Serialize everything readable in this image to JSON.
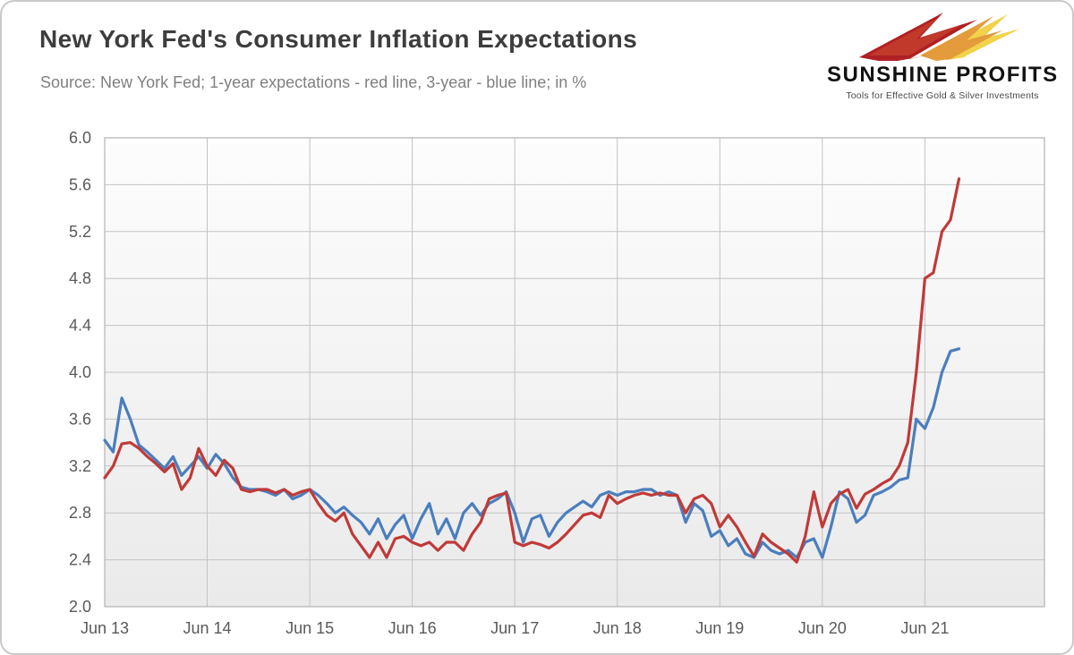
{
  "header": {
    "title": "New York Fed's Consumer Inflation Expectations",
    "subtitle": "Source: New York Fed; 1-year expectations - red line, 3-year - blue line; in %"
  },
  "logo": {
    "name": "SUNSHINE PROFITS",
    "tagline": "Tools for Effective Gold & Silver Investments",
    "colors": {
      "dark_red": "#a81922",
      "red": "#c0392b",
      "orange": "#e39b3b",
      "yellow": "#f2d24b"
    }
  },
  "chart_data": {
    "type": "line",
    "title": "New York Fed's Consumer Inflation Expectations",
    "xlabel": "",
    "ylabel": "",
    "ylim": [
      2.0,
      6.0
    ],
    "ytick_step": 0.4,
    "ytick_labels": [
      "2.0",
      "2.4",
      "2.8",
      "3.2",
      "3.6",
      "4.0",
      "4.4",
      "4.8",
      "5.2",
      "5.6",
      "6.0"
    ],
    "xtick_labels": [
      "Jun 13",
      "Jun 14",
      "Jun 15",
      "Jun 16",
      "Jun 17",
      "Jun 18",
      "Jun 19",
      "Jun 20",
      "Jun 21"
    ],
    "xtick_month_indices": [
      0,
      12,
      24,
      36,
      48,
      60,
      72,
      84,
      96
    ],
    "x_total_months": 110,
    "x_start": "Jun 2013",
    "x_end": "Oct 2021",
    "grid": true,
    "legend_position": "none (described in subtitle)",
    "plot_colors": {
      "grid": "#c3c3c3",
      "border": "#b3b3b3",
      "bg_top": "#fdfdfd",
      "bg_bottom": "#eaeaea"
    },
    "series": [
      {
        "name": "1-year expectations",
        "color": "#c03a38",
        "values": [
          3.1,
          3.2,
          3.39,
          3.4,
          3.35,
          3.28,
          3.22,
          3.15,
          3.22,
          3.0,
          3.1,
          3.35,
          3.2,
          3.12,
          3.25,
          3.18,
          3.0,
          2.98,
          3.0,
          3.0,
          2.97,
          3.0,
          2.95,
          2.98,
          3.0,
          2.88,
          2.78,
          2.73,
          2.8,
          2.62,
          2.52,
          2.42,
          2.55,
          2.42,
          2.58,
          2.6,
          2.55,
          2.52,
          2.55,
          2.48,
          2.55,
          2.55,
          2.48,
          2.62,
          2.72,
          2.92,
          2.95,
          2.97,
          2.55,
          2.52,
          2.55,
          2.53,
          2.5,
          2.55,
          2.62,
          2.7,
          2.78,
          2.8,
          2.76,
          2.95,
          2.88,
          2.92,
          2.95,
          2.97,
          2.95,
          2.97,
          2.95,
          2.95,
          2.8,
          2.92,
          2.95,
          2.88,
          2.68,
          2.78,
          2.68,
          2.55,
          2.43,
          2.62,
          2.55,
          2.5,
          2.45,
          2.38,
          2.6,
          2.98,
          2.68,
          2.88,
          2.96,
          3.0,
          2.84,
          2.96,
          3.0,
          3.05,
          3.09,
          3.2,
          3.4,
          4.0,
          4.8,
          4.85,
          5.2,
          5.3,
          5.65
        ]
      },
      {
        "name": "3-year expectations",
        "color": "#4a7ebd",
        "values": [
          3.42,
          3.32,
          3.78,
          3.6,
          3.38,
          3.32,
          3.25,
          3.18,
          3.28,
          3.12,
          3.2,
          3.28,
          3.18,
          3.3,
          3.22,
          3.1,
          3.02,
          3.0,
          3.0,
          2.98,
          2.95,
          3.0,
          2.92,
          2.95,
          3.0,
          2.95,
          2.88,
          2.8,
          2.85,
          2.78,
          2.72,
          2.62,
          2.75,
          2.58,
          2.7,
          2.78,
          2.58,
          2.75,
          2.88,
          2.62,
          2.75,
          2.58,
          2.8,
          2.88,
          2.78,
          2.88,
          2.92,
          2.98,
          2.8,
          2.55,
          2.75,
          2.78,
          2.6,
          2.72,
          2.8,
          2.85,
          2.9,
          2.85,
          2.95,
          2.98,
          2.95,
          2.98,
          2.98,
          3.0,
          3.0,
          2.95,
          2.98,
          2.95,
          2.72,
          2.88,
          2.82,
          2.6,
          2.65,
          2.52,
          2.58,
          2.45,
          2.42,
          2.55,
          2.48,
          2.45,
          2.48,
          2.42,
          2.55,
          2.58,
          2.42,
          2.68,
          2.98,
          2.92,
          2.72,
          2.78,
          2.95,
          2.98,
          3.02,
          3.08,
          3.1,
          3.6,
          3.52,
          3.7,
          4.0,
          4.18,
          4.2
        ]
      }
    ]
  }
}
